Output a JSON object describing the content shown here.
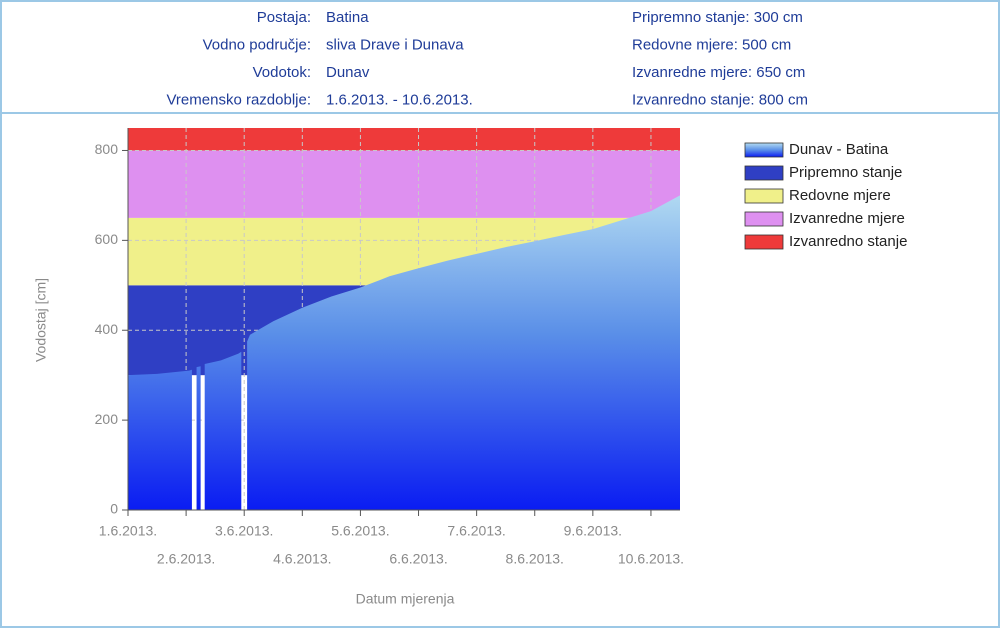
{
  "header": {
    "left": [
      {
        "label": "Postaja:",
        "value": "Batina"
      },
      {
        "label": "Vodno područje:",
        "value": "sliva Drave i Dunava"
      },
      {
        "label": "Vodotok:",
        "value": "Dunav"
      },
      {
        "label": "Vremensko razdoblje:",
        "value": "1.6.2013. - 10.6.2013."
      }
    ],
    "right": [
      "Pripremno stanje: 300 cm",
      "Redovne mjere: 500 cm",
      "Izvanredne mjere: 650 cm",
      "Izvanredno stanje: 800 cm"
    ]
  },
  "chart_data": {
    "type": "area",
    "x_label": "Datum mjerenja",
    "y_label": "Vodostaj [cm]",
    "xlim": [
      0,
      9.5
    ],
    "xticks": [
      {
        "value": 0,
        "label": "1.6.2013."
      },
      {
        "value": 1,
        "label": "2.6.2013."
      },
      {
        "value": 2,
        "label": "3.6.2013."
      },
      {
        "value": 3,
        "label": "4.6.2013."
      },
      {
        "value": 4,
        "label": "5.6.2013."
      },
      {
        "value": 5,
        "label": "6.6.2013."
      },
      {
        "value": 6,
        "label": "7.6.2013."
      },
      {
        "value": 7,
        "label": "8.6.2013."
      },
      {
        "value": 8,
        "label": "9.6.2013."
      },
      {
        "value": 9,
        "label": "10.6.2013."
      }
    ],
    "ylim": [
      0,
      850
    ],
    "yticks": [
      0,
      200,
      400,
      600,
      800
    ],
    "grid": true,
    "legend": "right",
    "series": [
      {
        "name": "Dunav - Batina",
        "color": "#5a8fe8",
        "x": [
          0,
          0.5,
          1.05,
          1.1,
          1.13,
          1.18,
          1.25,
          1.28,
          1.32,
          1.6,
          1.9,
          1.95,
          2.0,
          2.05,
          2.1,
          2.5,
          3.0,
          3.5,
          4.0,
          4.5,
          5.0,
          5.5,
          6.0,
          6.5,
          7.0,
          7.5,
          8.0,
          8.5,
          9.0,
          9.5
        ],
        "values": [
          300,
          303,
          310,
          312,
          null,
          318,
          320,
          null,
          325,
          333,
          348,
          352,
          null,
          375,
          390,
          420,
          450,
          475,
          495,
          520,
          538,
          555,
          570,
          585,
          598,
          612,
          625,
          645,
          665,
          700
        ]
      }
    ],
    "bands": [
      {
        "name": "Pripremno stanje",
        "color": "#2f3fc4",
        "range": [
          300,
          500
        ]
      },
      {
        "name": "Redovne mjere",
        "color": "#f0f08a",
        "range": [
          500,
          650
        ]
      },
      {
        "name": "Izvanredne mjere",
        "color": "#de90f0",
        "range": [
          650,
          800
        ]
      },
      {
        "name": "Izvanredno stanje",
        "color": "#ee3a3a",
        "range": [
          800,
          850
        ]
      }
    ]
  }
}
